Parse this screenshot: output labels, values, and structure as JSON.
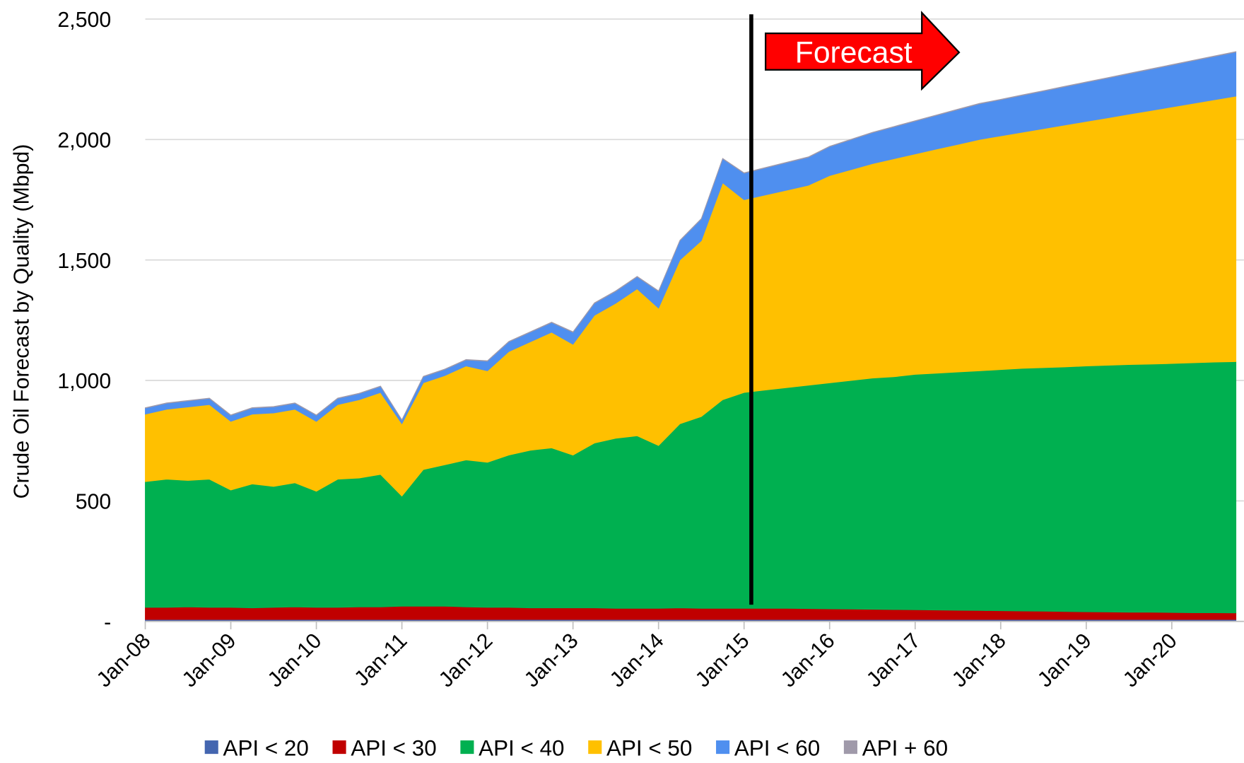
{
  "chart_data": {
    "type": "stacked_area",
    "y_axis_label": "Crude Oil Forecast by Quality (Mbpd)",
    "annotations": [
      "Forecast"
    ],
    "categories": [
      "Jan-08",
      null,
      null,
      null,
      "Jan-09",
      null,
      null,
      null,
      "Jan-10",
      null,
      null,
      null,
      "Jan-11",
      null,
      null,
      null,
      "Jan-12",
      null,
      null,
      null,
      "Jan-13",
      null,
      null,
      null,
      "Jan-14",
      null,
      null,
      null,
      "Jan-15",
      null,
      null,
      null,
      "Jan-16",
      null,
      null,
      null,
      "Jan-17",
      null,
      null,
      null,
      "Jan-18",
      null,
      null,
      null,
      "Jan-19",
      null,
      null,
      null,
      "Jan-20",
      null,
      null,
      null
    ],
    "ylim": [
      0,
      2500
    ],
    "yticks": [
      {
        "value": 0,
        "label": "-"
      },
      500,
      {
        "value": 1000,
        "label": "1,000"
      },
      {
        "value": 1500,
        "label": "1,500"
      },
      {
        "value": 2000,
        "label": "2,000"
      },
      {
        "value": 2500,
        "label": "2,500"
      }
    ],
    "grid": true,
    "legend": "bottom",
    "series": [
      {
        "name": "API < 20",
        "color": "#4466b0",
        "values": [
          8,
          8,
          8,
          8,
          8,
          8,
          8,
          8,
          8,
          8,
          8,
          8,
          8,
          8,
          8,
          8,
          8,
          8,
          8,
          8,
          8,
          8,
          8,
          8,
          8,
          8,
          8,
          8,
          8,
          8,
          8,
          8,
          8,
          8,
          8,
          8,
          8,
          8,
          8,
          8,
          8,
          8,
          8,
          8,
          8,
          8,
          8,
          8,
          8,
          8,
          8,
          8
        ]
      },
      {
        "name": "API < 30",
        "color": "#c00000",
        "values": [
          50,
          50,
          52,
          50,
          50,
          48,
          50,
          52,
          50,
          50,
          52,
          52,
          55,
          55,
          55,
          52,
          50,
          50,
          48,
          48,
          48,
          48,
          46,
          46,
          46,
          48,
          46,
          46,
          46,
          46,
          46,
          45,
          44,
          43,
          42,
          41,
          40,
          39,
          38,
          37,
          36,
          35,
          34,
          33,
          32,
          31,
          30,
          30,
          29,
          28,
          28,
          27
        ]
      },
      {
        "name": "API < 40",
        "color": "#00b050",
        "values": [
          522,
          532,
          525,
          532,
          487,
          514,
          502,
          515,
          482,
          532,
          535,
          550,
          457,
          567,
          587,
          610,
          602,
          632,
          654,
          664,
          634,
          684,
          706,
          716,
          676,
          764,
          796,
          866,
          896,
          906,
          916,
          927,
          938,
          949,
          960,
          966,
          977,
          983,
          989,
          995,
          1001,
          1007,
          1011,
          1015,
          1020,
          1024,
          1028,
          1030,
          1033,
          1037,
          1040,
          1043
        ]
      },
      {
        "name": "API < 50",
        "color": "#ffc000",
        "values": [
          280,
          290,
          305,
          310,
          285,
          290,
          305,
          305,
          290,
          310,
          325,
          340,
          300,
          360,
          370,
          390,
          380,
          430,
          450,
          480,
          460,
          530,
          560,
          610,
          570,
          680,
          730,
          900,
          800,
          810,
          820,
          830,
          860,
          875,
          890,
          905,
          915,
          930,
          945,
          960,
          970,
          980,
          992,
          1004,
          1015,
          1027,
          1039,
          1052,
          1065,
          1077,
          1089,
          1102
        ]
      },
      {
        "name": "API < 60",
        "color": "#4f8fef",
        "values": [
          25,
          25,
          25,
          25,
          25,
          25,
          25,
          25,
          25,
          25,
          25,
          25,
          15,
          25,
          25,
          25,
          40,
          40,
          40,
          40,
          50,
          50,
          50,
          50,
          70,
          80,
          90,
          100,
          110,
          112,
          114,
          116,
          120,
          124,
          128,
          132,
          136,
          140,
          144,
          148,
          150,
          153,
          156,
          159,
          162,
          165,
          168,
          171,
          174,
          177,
          180,
          183
        ]
      },
      {
        "name": "API + 60",
        "color": "#a09aaa",
        "values": [
          2,
          2,
          2,
          2,
          2,
          2,
          2,
          2,
          2,
          2,
          2,
          2,
          2,
          2,
          2,
          2,
          2,
          2,
          2,
          2,
          2,
          2,
          2,
          2,
          2,
          2,
          2,
          2,
          2,
          2,
          2,
          2,
          2,
          2,
          2,
          2,
          2,
          2,
          2,
          2,
          2,
          2,
          2,
          2,
          2,
          2,
          2,
          2,
          2,
          2,
          2,
          2
        ]
      }
    ]
  }
}
